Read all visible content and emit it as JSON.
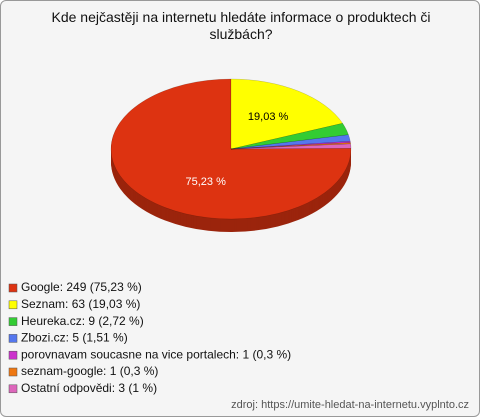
{
  "chart_data": {
    "type": "pie",
    "title": "Kde nejčastěji na internetu hledáte informace o produktech či službách?",
    "categories": [
      "Google: 249 (75,23 %)",
      "Seznam: 63 (19,03 %)",
      "Heureka.cz: 9 (2,72 %)",
      "Zbozi.cz: 5 (1,51 %)",
      "porovnavam soucasne na vice portalech: 1 (0,3 %)",
      "seznam-google: 1 (0,3 %)",
      "Ostatní odpovědi: 3 (1 %)"
    ],
    "values": [
      75.23,
      19.03,
      2.72,
      1.51,
      0.3,
      0.3,
      1
    ],
    "value_labels": [
      "75,23 %",
      "19,03 %",
      null,
      null,
      null,
      null,
      null
    ],
    "colors": [
      "#dd3311",
      "#ffff00",
      "#33cc33",
      "#5577ee",
      "#cc33cc",
      "#ee7711",
      "#dd66bb"
    ],
    "source": "zdroj: https://umite-hledat-na-internetu.vyplnto.cz"
  }
}
